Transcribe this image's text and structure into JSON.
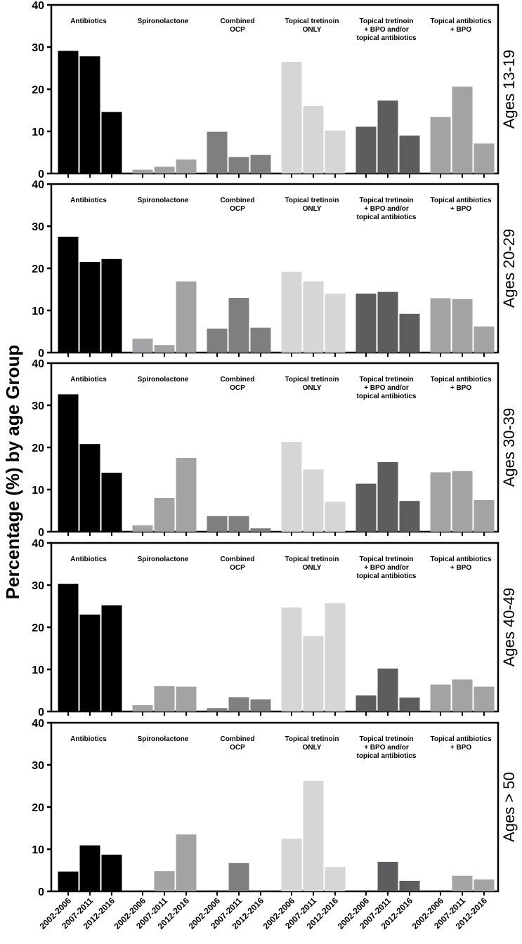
{
  "chart_data": {
    "type": "bar",
    "ylabel": "Percentage (%) by age Group",
    "ylim": [
      0,
      40
    ],
    "yticks": [
      "0",
      "10",
      "20",
      "30",
      "40"
    ],
    "x_ticks": [
      "2002-2006",
      "2007-2011",
      "2012-2016"
    ],
    "groups": [
      {
        "label": "Antibiotics",
        "color": "#000000"
      },
      {
        "label": "Spironolactone",
        "color": "#a3a3a5"
      },
      {
        "label": "Combined\nOCP",
        "color": "#7f7f80"
      },
      {
        "label": "Topical tretinoin\nONLY",
        "color": "#d6d6d6"
      },
      {
        "label": "Topical tretinoin\n+ BPO and/or\ntopical antibiotics",
        "color": "#5d5d5f"
      },
      {
        "label": "Topical antibiotics\n+ BPO",
        "color": "#a3a3a5"
      }
    ],
    "panels": [
      {
        "label": "Ages 13-19",
        "values": [
          [
            29.1,
            27.8,
            14.6
          ],
          [
            0.9,
            1.6,
            3.3
          ],
          [
            9.9,
            3.9,
            4.4
          ],
          [
            26.5,
            16.0,
            10.2
          ],
          [
            11.1,
            17.3,
            9.0
          ],
          [
            13.4,
            20.6,
            7.1
          ]
        ]
      },
      {
        "label": "Ages 20-29",
        "values": [
          [
            27.5,
            21.5,
            22.2
          ],
          [
            3.3,
            1.8,
            16.9
          ],
          [
            5.7,
            13.0,
            5.9
          ],
          [
            19.2,
            16.9,
            14.0
          ],
          [
            14.0,
            14.4,
            9.2
          ],
          [
            12.9,
            12.7,
            6.2
          ]
        ]
      },
      {
        "label": "Ages 30-39",
        "values": [
          [
            32.6,
            20.8,
            14.0
          ],
          [
            1.5,
            8.0,
            17.5
          ],
          [
            3.7,
            3.7,
            0.8
          ],
          [
            21.3,
            14.8,
            7.1
          ],
          [
            11.4,
            16.5,
            7.3
          ],
          [
            14.1,
            14.4,
            7.5
          ]
        ]
      },
      {
        "label": "Ages 40-49",
        "values": [
          [
            30.3,
            23.0,
            25.2
          ],
          [
            1.5,
            6.0,
            5.9
          ],
          [
            0.8,
            3.4,
            2.9
          ],
          [
            24.7,
            17.9,
            25.7
          ],
          [
            3.8,
            10.2,
            3.3
          ],
          [
            6.4,
            7.6,
            5.9
          ]
        ]
      },
      {
        "label": "Ages > 50",
        "values": [
          [
            4.7,
            10.9,
            8.7
          ],
          [
            0,
            4.8,
            13.5
          ],
          [
            0,
            6.7,
            0.3
          ],
          [
            12.5,
            26.2,
            5.8
          ],
          [
            0,
            7.0,
            2.5
          ],
          [
            0,
            3.7,
            2.8
          ]
        ]
      }
    ]
  }
}
